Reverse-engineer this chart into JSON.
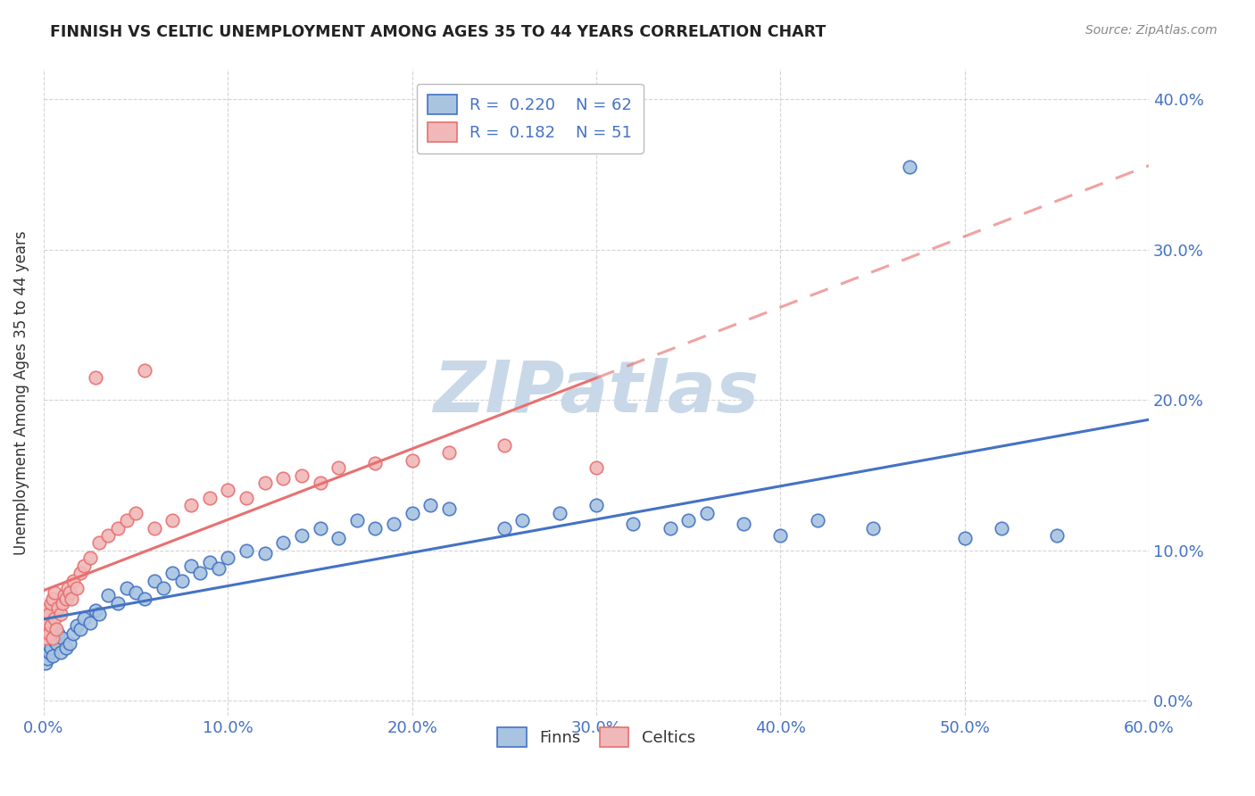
{
  "title": "FINNISH VS CELTIC UNEMPLOYMENT AMONG AGES 35 TO 44 YEARS CORRELATION CHART",
  "source": "Source: ZipAtlas.com",
  "ylabel": "Unemployment Among Ages 35 to 44 years",
  "xlim": [
    0.0,
    0.6
  ],
  "ylim": [
    -0.01,
    0.42
  ],
  "xticks": [
    0.0,
    0.1,
    0.2,
    0.3,
    0.4,
    0.5,
    0.6
  ],
  "yticks": [
    0.0,
    0.1,
    0.2,
    0.3,
    0.4
  ],
  "legend_r_finn": "0.220",
  "legend_n_finn": "62",
  "legend_r_celt": "0.182",
  "legend_n_celt": "51",
  "finn_line_color": "#4472c4",
  "finn_scatter_face": "#a8c4e0",
  "finn_scatter_edge": "#4472c4",
  "celt_line_color": "#e87070",
  "celt_scatter_face": "#f0b8b8",
  "celt_scatter_edge": "#e87070",
  "watermark_color": "#c8d8e8",
  "background_color": "#ffffff",
  "grid_color": "#d0d0d0",
  "tick_color": "#4472c4",
  "title_color": "#222222",
  "source_color": "#888888",
  "finn_x": [
    0.0,
    0.001,
    0.002,
    0.003,
    0.004,
    0.005,
    0.006,
    0.007,
    0.008,
    0.009,
    0.01,
    0.012,
    0.014,
    0.016,
    0.018,
    0.02,
    0.022,
    0.025,
    0.028,
    0.03,
    0.035,
    0.04,
    0.045,
    0.05,
    0.055,
    0.06,
    0.065,
    0.07,
    0.075,
    0.08,
    0.085,
    0.09,
    0.095,
    0.1,
    0.11,
    0.12,
    0.13,
    0.14,
    0.15,
    0.16,
    0.17,
    0.18,
    0.19,
    0.2,
    0.21,
    0.22,
    0.25,
    0.26,
    0.28,
    0.3,
    0.32,
    0.34,
    0.35,
    0.36,
    0.38,
    0.4,
    0.42,
    0.45,
    0.47,
    0.5,
    0.52,
    0.55
  ],
  "finn_y": [
    0.03,
    0.025,
    0.028,
    0.032,
    0.035,
    0.03,
    0.04,
    0.038,
    0.045,
    0.032,
    0.042,
    0.035,
    0.038,
    0.045,
    0.05,
    0.048,
    0.055,
    0.052,
    0.06,
    0.058,
    0.07,
    0.065,
    0.075,
    0.072,
    0.068,
    0.08,
    0.075,
    0.085,
    0.08,
    0.09,
    0.085,
    0.092,
    0.088,
    0.095,
    0.1,
    0.098,
    0.105,
    0.11,
    0.115,
    0.108,
    0.12,
    0.115,
    0.118,
    0.125,
    0.13,
    0.128,
    0.115,
    0.12,
    0.125,
    0.13,
    0.118,
    0.115,
    0.12,
    0.125,
    0.118,
    0.11,
    0.12,
    0.115,
    0.355,
    0.108,
    0.115,
    0.11
  ],
  "celt_x": [
    0.0,
    0.0,
    0.001,
    0.001,
    0.002,
    0.002,
    0.003,
    0.003,
    0.004,
    0.004,
    0.005,
    0.005,
    0.006,
    0.006,
    0.007,
    0.008,
    0.009,
    0.01,
    0.011,
    0.012,
    0.013,
    0.014,
    0.015,
    0.016,
    0.018,
    0.02,
    0.022,
    0.025,
    0.028,
    0.03,
    0.035,
    0.04,
    0.045,
    0.05,
    0.055,
    0.06,
    0.07,
    0.08,
    0.09,
    0.1,
    0.11,
    0.12,
    0.13,
    0.14,
    0.15,
    0.16,
    0.18,
    0.2,
    0.22,
    0.25,
    0.3
  ],
  "celt_y": [
    0.045,
    0.055,
    0.042,
    0.06,
    0.048,
    0.052,
    0.045,
    0.058,
    0.05,
    0.065,
    0.042,
    0.068,
    0.055,
    0.072,
    0.048,
    0.062,
    0.058,
    0.065,
    0.07,
    0.068,
    0.075,
    0.072,
    0.068,
    0.08,
    0.075,
    0.085,
    0.09,
    0.095,
    0.215,
    0.105,
    0.11,
    0.115,
    0.12,
    0.125,
    0.22,
    0.115,
    0.12,
    0.13,
    0.135,
    0.14,
    0.135,
    0.145,
    0.148,
    0.15,
    0.145,
    0.155,
    0.158,
    0.16,
    0.165,
    0.17,
    0.155
  ]
}
